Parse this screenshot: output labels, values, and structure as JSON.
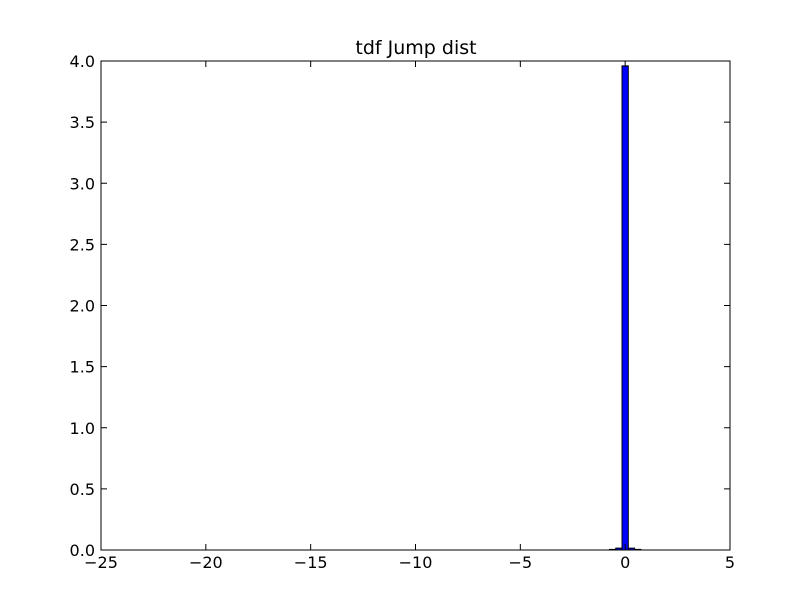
{
  "chart_data": {
    "type": "histogram",
    "title": "tdf Jump dist",
    "bins": [
      -22.95,
      -22.65,
      -22.35,
      -22.05,
      -21.75,
      -21.45,
      -21.15,
      -20.85,
      -20.55,
      -20.25,
      -19.95,
      -19.65,
      -19.35,
      -19.05,
      -18.75,
      -18.45,
      -18.15,
      -17.85,
      -17.55,
      -17.25,
      -16.95,
      -16.65,
      -16.35,
      -16.05,
      -15.75,
      -15.45,
      -15.15,
      -14.85,
      -14.55,
      -14.25,
      -13.95,
      -13.65,
      -13.35,
      -13.05,
      -12.75,
      -12.45,
      -12.15,
      -11.85,
      -11.55,
      -11.25,
      -10.95,
      -10.65,
      -10.35,
      -10.05,
      -9.75,
      -9.45,
      -9.15,
      -8.85,
      -8.55,
      -8.25,
      -7.95,
      -7.65,
      -7.35,
      -7.05,
      -6.75,
      -6.45,
      -6.15,
      -5.85,
      -5.55,
      -5.25,
      -4.95,
      -4.65,
      -4.35,
      -4.05,
      -3.75,
      -3.45,
      -3.15,
      -2.85,
      -2.55,
      -2.25,
      -1.95,
      -1.65,
      -1.35,
      -1.05,
      -0.75,
      -0.45,
      -0.15,
      0.15,
      0.45,
      0.75,
      1.05,
      1.35,
      1.65
    ],
    "values": [
      0,
      0,
      0,
      0,
      0,
      0,
      0,
      0,
      0,
      0,
      0,
      0,
      0,
      0,
      0,
      0,
      0,
      0,
      0,
      0,
      0,
      0,
      0,
      0,
      0,
      0,
      0,
      0,
      0,
      0,
      0,
      0,
      0,
      0,
      0,
      0,
      0,
      0,
      0,
      0,
      0,
      0,
      0,
      0,
      0,
      0,
      0,
      0,
      0,
      0,
      0,
      0,
      0,
      0,
      0,
      0,
      0,
      0,
      0,
      0,
      0,
      0,
      0,
      0,
      0,
      0,
      0,
      0,
      0,
      0,
      0,
      0,
      0,
      0,
      0.005,
      0.015,
      3.96,
      0.015,
      0.005,
      0,
      0,
      0
    ],
    "color": "#0000ff",
    "edgecolor": "#000000",
    "xlim": [
      -25,
      5
    ],
    "xticks": [
      {
        "value": -25,
        "label": "−25"
      },
      {
        "value": -20,
        "label": "−20"
      },
      {
        "value": -15,
        "label": "−15"
      },
      {
        "value": -10,
        "label": "−10"
      },
      {
        "value": -5,
        "label": "−5"
      },
      0,
      5
    ],
    "ylim": [
      0,
      4
    ],
    "yticks": [
      {
        "value": 0,
        "label": "0.0"
      },
      {
        "value": 0.5,
        "label": "0.5"
      },
      {
        "value": 1,
        "label": "1.0"
      },
      {
        "value": 1.5,
        "label": "1.5"
      },
      {
        "value": 2,
        "label": "2.0"
      },
      {
        "value": 2.5,
        "label": "2.5"
      },
      {
        "value": 3,
        "label": "3.0"
      },
      {
        "value": 3.5,
        "label": "3.5"
      },
      {
        "value": 4,
        "label": "4.0"
      }
    ]
  }
}
